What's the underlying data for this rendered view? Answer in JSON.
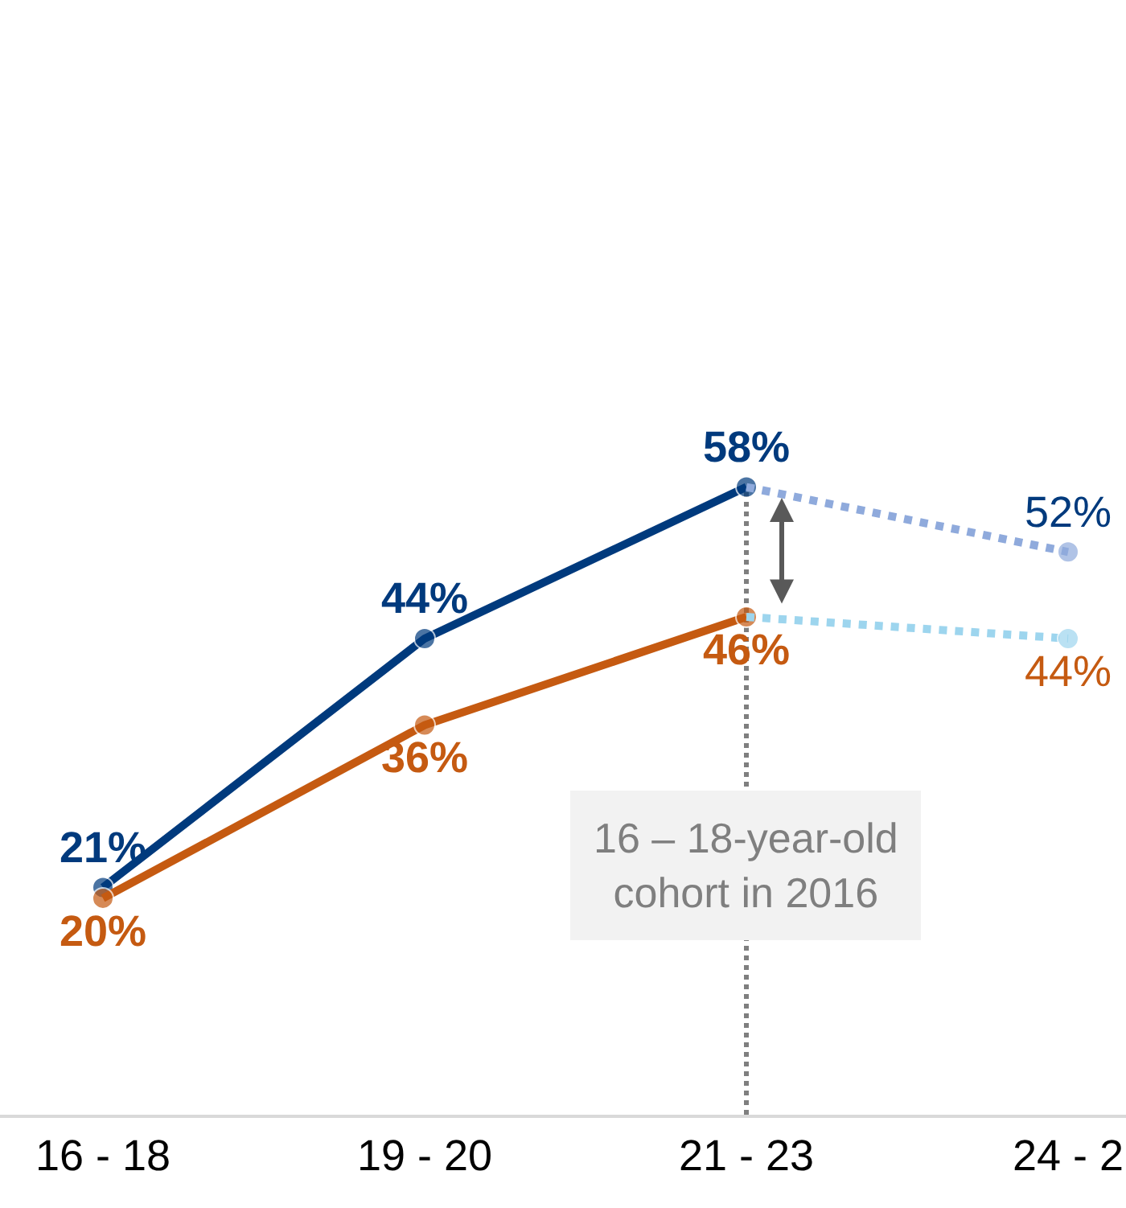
{
  "chart_data": {
    "type": "line",
    "categories": [
      "16 - 18",
      "19 - 20",
      "21 - 23",
      "24 - 2"
    ],
    "series": [
      {
        "color": "#003a7d",
        "values": [
          21,
          44,
          58,
          null
        ],
        "value_labels": [
          "21%",
          "44%",
          "58%",
          null
        ],
        "line_style": "solid"
      },
      {
        "color": "#8faadc",
        "values": [
          null,
          null,
          58,
          52
        ],
        "value_labels": [
          null,
          null,
          null,
          "52%"
        ],
        "line_style": "dotted"
      },
      {
        "color": "#c55a11",
        "values": [
          20,
          36,
          46,
          null
        ],
        "value_labels": [
          "20%",
          "36%",
          "46%",
          null
        ],
        "line_style": "solid"
      },
      {
        "color": "#9dd5ee",
        "values": [
          null,
          null,
          46,
          44
        ],
        "value_labels": [
          null,
          null,
          null,
          "44%"
        ],
        "line_style": "dotted"
      }
    ],
    "ylim": [
      0,
      103
    ],
    "tick_labels": "x",
    "grid": false,
    "legend": false,
    "marker": "circle",
    "ref_lines": [
      {
        "axis": "x",
        "value": "21 - 23",
        "color": "#7f7f7f",
        "line_style": "dotted"
      }
    ],
    "annotations": [
      "16 – 18-year-old\ncohort in 2016"
    ]
  }
}
